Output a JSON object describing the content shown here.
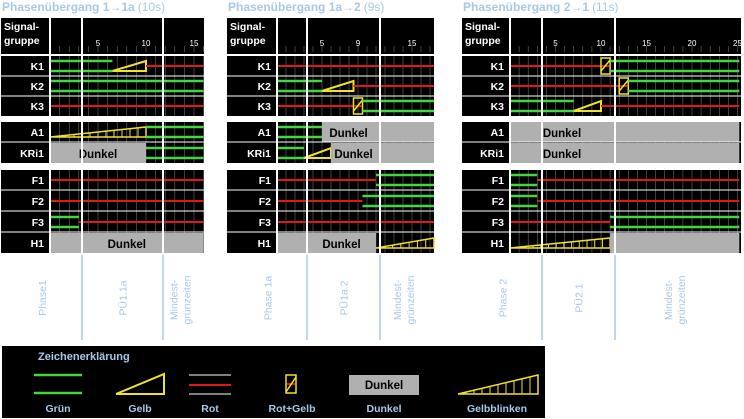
{
  "scale_max": [
    15,
    15,
    25
  ],
  "panels": [
    {
      "title": "Phasenübergang 1",
      "title_to": "1a",
      "duration": "(10s)",
      "header": [
        "Signal-",
        "gruppe"
      ],
      "ticks": [
        {
          "t": 5,
          "label": "5"
        },
        {
          "t": 10,
          "label": "10"
        },
        {
          "t": 15,
          "label": "15"
        }
      ],
      "rows": [
        "K1",
        "K2",
        "K3",
        "A1",
        "KRi1",
        "F1",
        "F2",
        "F3",
        "H1"
      ],
      "phases": [
        "Phase1",
        "PÜ1.1a",
        "Mindest-grünzeiten"
      ],
      "dunkel_label": "Dunkel"
    },
    {
      "title": "Phasenübergang 1a",
      "title_to": "2",
      "duration": "(9s)",
      "header": [
        "Signal-",
        "gruppe"
      ],
      "ticks": [
        {
          "t": 5,
          "label": "5"
        },
        {
          "t": 9,
          "label": "9"
        },
        {
          "t": 15,
          "label": "15"
        }
      ],
      "rows": [
        "K1",
        "K2",
        "K3",
        "A1",
        "KRi1",
        "F1",
        "F2",
        "F3",
        "H1"
      ],
      "phases": [
        "Phase 1a",
        "PÜ1a.2",
        "Mindest-grünzeiten"
      ],
      "dunkel_label": "Dunkel"
    },
    {
      "title": "Phasenübergang 2",
      "title_to": "1",
      "duration": "(11s)",
      "header": [
        "Signal-",
        "gruppe"
      ],
      "ticks": [
        {
          "t": 5,
          "label": "5"
        },
        {
          "t": 10,
          "label": "10"
        },
        {
          "t": 15,
          "label": "15"
        },
        {
          "t": 20,
          "label": "20"
        },
        {
          "t": 25,
          "label": "25"
        }
      ],
      "rows": [
        "K1",
        "K2",
        "K3",
        "A1",
        "KRi1",
        "F1",
        "F2",
        "F3",
        "H1"
      ],
      "phases": [
        "Phase 2",
        "PÜ2.1",
        "Mindest-grünzeiten"
      ],
      "dunkel_label": "Dunkel"
    }
  ],
  "legend": {
    "title": "Zeichenerklärung",
    "items": [
      "Grün",
      "Gelb",
      "Rot",
      "Rot+Gelb",
      "Dunkel",
      "Gelbblinken"
    ],
    "dunkel_box": "Dunkel"
  },
  "colors": {
    "background": "#000000",
    "green": "#44d444",
    "yellow": "#f0e030",
    "red": "#e01818",
    "dark_grey": "#b0b0b0",
    "text_blue": "#a8c8e8",
    "grid": "#6a6a6a"
  }
}
